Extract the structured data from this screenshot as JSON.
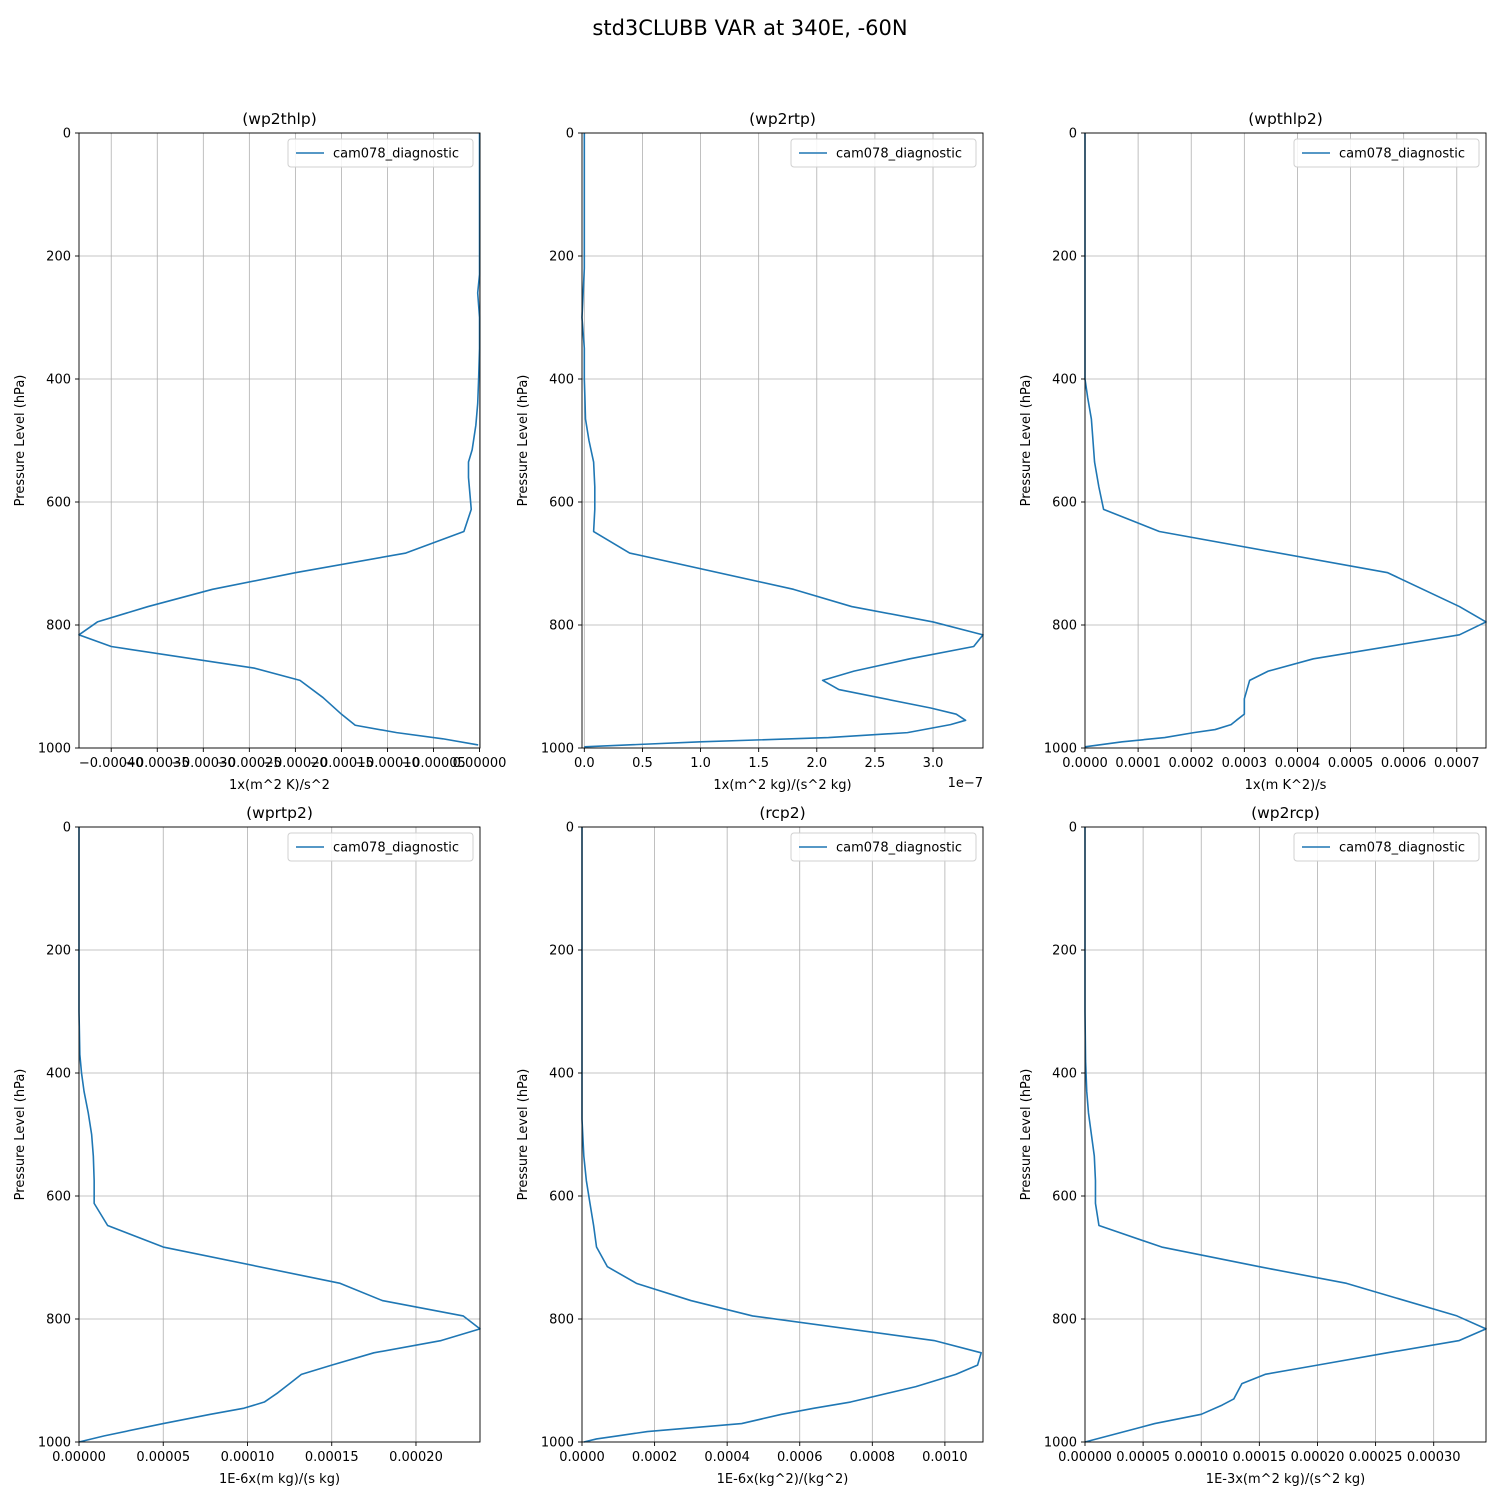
{
  "suptitle": "std3CLUBB VAR at 340E, -60N",
  "chart_data": [
    {
      "type": "line",
      "title": "(wp2thlp)",
      "xlabel": "1x(m^2 K)/s^2",
      "ylabel": "Pressure Level (hPa)",
      "xlim": [
        -0.000435,
        5e-07
      ],
      "ylim": [
        1000,
        0
      ],
      "xticks": [
        -0.0004,
        -0.00035,
        -0.0003,
        -0.00025,
        -0.0002,
        -0.00015,
        -0.0001,
        -5e-05,
        0.0
      ],
      "xticklabels": [
        "−0.00040",
        "−0.00035",
        "−0.00030",
        "−0.00025",
        "−0.00020",
        "−0.00015",
        "−0.00010",
        "−0.00005",
        "0.00000"
      ],
      "yticks": [
        0,
        200,
        400,
        600,
        800,
        1000
      ],
      "yticklabels": [
        "0",
        "200",
        "400",
        "600",
        "800",
        "1000"
      ],
      "grid": true,
      "legend_loc": "upper right",
      "series": [
        {
          "name": "cam078_diagnostic",
          "color": "#1f77b4",
          "x": [
            0.0,
            0.0,
            0.0,
            0.0,
            0.0,
            -2e-06,
            0.0,
            0.0,
            -1e-06,
            -2e-06,
            -4e-06,
            -8e-06,
            -1.2e-05,
            -1.2e-05,
            -9e-06,
            -1.7e-05,
            -8e-05,
            -0.0002,
            -0.00029,
            -0.00036,
            -0.000415,
            -0.000435,
            -0.0004,
            -0.000245,
            -0.000195,
            -0.00017,
            -0.00015,
            -0.000135,
            -9e-05,
            -4e-05,
            -1.5e-06
          ],
          "y": [
            0,
            100,
            150,
            200,
            230,
            260,
            300,
            350,
            400,
            440,
            475,
            515,
            535,
            560,
            612,
            648,
            683,
            715,
            742,
            770,
            795,
            816,
            835,
            870,
            890,
            918,
            945,
            963,
            975,
            985,
            995
          ]
        }
      ]
    },
    {
      "type": "line",
      "title": "(wp2rtp)",
      "xlabel": "1x(m^2 kg)/(s^2 kg)",
      "ylabel": "Pressure Level (hPa)",
      "offset_label": "1e−7",
      "xlim": [
        -2e-09,
        3.43e-07
      ],
      "ylim": [
        1000,
        0
      ],
      "xticks": [
        0.0,
        5e-08,
        1e-07,
        1.5e-07,
        2e-07,
        2.5e-07,
        3e-07
      ],
      "xticklabels": [
        "0.0",
        "0.5",
        "1.0",
        "1.5",
        "2.0",
        "2.5",
        "3.0"
      ],
      "yticks": [
        0,
        200,
        400,
        600,
        800,
        1000
      ],
      "yticklabels": [
        "0",
        "200",
        "400",
        "600",
        "800",
        "1000"
      ],
      "grid": true,
      "legend_loc": "upper right",
      "series": [
        {
          "name": "cam078_diagnostic",
          "color": "#1f77b4",
          "x": [
            0.0,
            0.0,
            0.0,
            -1e-09,
            -2e-09,
            0.0,
            0.0,
            5e-10,
            1e-09,
            4e-09,
            8e-09,
            9e-09,
            9e-09,
            8e-09,
            3.9e-08,
            1.8e-07,
            2.3e-07,
            3e-07,
            3.43e-07,
            3.35e-07,
            2.8e-07,
            2.32e-07,
            2.05e-07,
            2.19e-07,
            2.98e-07,
            3.2e-07,
            3.28e-07,
            3.15e-07,
            2.78e-07,
            2.1e-07,
            1e-07,
            0.0
          ],
          "y": [
            0,
            100,
            220,
            260,
            300,
            350,
            400,
            430,
            465,
            500,
            535,
            575,
            612,
            648,
            683,
            742,
            770,
            795,
            816,
            835,
            855,
            875,
            890,
            905,
            935,
            945,
            955,
            962,
            975,
            983,
            990,
            998
          ]
        }
      ]
    },
    {
      "type": "line",
      "title": "(wpthlp2)",
      "xlabel": "1x(m K^2)/s",
      "ylabel": "Pressure Level (hPa)",
      "xlim": [
        0.0,
        0.000755
      ],
      "ylim": [
        1000,
        0
      ],
      "xticks": [
        0.0,
        0.0001,
        0.0002,
        0.0003,
        0.0004,
        0.0005,
        0.0006,
        0.0007
      ],
      "xticklabels": [
        "0.0000",
        "0.0001",
        "0.0002",
        "0.0003",
        "0.0004",
        "0.0005",
        "0.0006",
        "0.0007"
      ],
      "yticks": [
        0,
        200,
        400,
        600,
        800,
        1000
      ],
      "yticklabels": [
        "0",
        "200",
        "400",
        "600",
        "800",
        "1000"
      ],
      "grid": true,
      "legend_loc": "upper right",
      "series": [
        {
          "name": "cam078_diagnostic",
          "color": "#1f77b4",
          "x": [
            0.0,
            0.0,
            0.0,
            0.0,
            0.0,
            5e-06,
            1.2e-05,
            1.5e-05,
            1.8e-05,
            2.6e-05,
            3.5e-05,
            0.00014,
            0.00057,
            0.000705,
            0.000755,
            0.000705,
            0.00043,
            0.000345,
            0.00031,
            0.000305,
            0.0003,
            0.0003,
            0.000285,
            0.000275,
            0.000245,
            0.000205,
            0.00015,
            7e-05,
            1e-07
          ],
          "y": [
            0,
            150,
            200,
            260,
            400,
            430,
            465,
            500,
            535,
            575,
            612,
            648,
            715,
            770,
            795,
            816,
            855,
            875,
            890,
            905,
            920,
            945,
            955,
            962,
            970,
            975,
            983,
            990,
            998
          ]
        }
      ]
    },
    {
      "type": "line",
      "title": "(wprtp2)",
      "xlabel": "1E-6x(m kg)/(s kg)",
      "ylabel": "Pressure Level (hPa)",
      "xlim": [
        0.0,
        0.000238
      ],
      "ylim": [
        1000,
        0
      ],
      "xticks": [
        0.0,
        5e-05,
        0.0001,
        0.00015,
        0.0002
      ],
      "xticklabels": [
        "0.00000",
        "0.00005",
        "0.00010",
        "0.00015",
        "0.00020"
      ],
      "yticks": [
        0,
        200,
        400,
        600,
        800,
        1000
      ],
      "yticklabels": [
        "0",
        "200",
        "400",
        "600",
        "800",
        "1000"
      ],
      "grid": true,
      "legend_loc": "upper right",
      "series": [
        {
          "name": "cam078_diagnostic",
          "color": "#1f77b4",
          "x": [
            0.0,
            0.0,
            0.0,
            0.0,
            5e-07,
            1.5e-06,
            3e-06,
            5.5e-06,
            7.5e-06,
            8.5e-06,
            9e-06,
            9e-06,
            1.7e-05,
            5e-05,
            0.000155,
            0.00018,
            0.000228,
            0.000238,
            0.000215,
            0.000175,
            0.00015,
            0.000132,
            0.000125,
            0.000118,
            0.00011,
            9.8e-05,
            7.8e-05,
            5e-05,
            1.5e-05,
            0.0
          ],
          "y": [
            0,
            100,
            200,
            300,
            370,
            400,
            430,
            465,
            500,
            535,
            575,
            612,
            648,
            683,
            742,
            770,
            795,
            816,
            835,
            855,
            875,
            890,
            905,
            920,
            935,
            945,
            955,
            970,
            990,
            1000
          ]
        }
      ]
    },
    {
      "type": "line",
      "title": "(rcp2)",
      "xlabel": "1E-6x(kg^2)/(kg^2)",
      "ylabel": "Pressure Level (hPa)",
      "xlim": [
        0.0,
        0.001105
      ],
      "ylim": [
        1000,
        0
      ],
      "xticks": [
        0.0,
        0.0002,
        0.0004,
        0.0006,
        0.0008,
        0.001
      ],
      "xticklabels": [
        "0.0000",
        "0.0002",
        "0.0004",
        "0.0006",
        "0.0008",
        "0.0010"
      ],
      "yticks": [
        0,
        200,
        400,
        600,
        800,
        1000
      ],
      "yticklabels": [
        "0",
        "200",
        "400",
        "600",
        "800",
        "1000"
      ],
      "grid": true,
      "legend_loc": "upper right",
      "series": [
        {
          "name": "cam078_diagnostic",
          "color": "#1f77b4",
          "x": [
            0.0,
            0.0,
            5e-06,
            1.2e-05,
            2.2e-05,
            3.2e-05,
            4e-05,
            7e-05,
            0.00015,
            0.0003,
            0.00047,
            0.00097,
            0.0011,
            0.00109,
            0.00103,
            0.00092,
            0.00074,
            0.00064,
            0.00055,
            0.00044,
            0.00018,
            0.0001,
            4e-05,
            5e-06
          ],
          "y": [
            0,
            475,
            535,
            575,
            612,
            648,
            683,
            715,
            742,
            770,
            795,
            835,
            855,
            875,
            890,
            910,
            935,
            945,
            955,
            970,
            983,
            990,
            995,
            1000
          ]
        }
      ]
    },
    {
      "type": "line",
      "title": "(wp2rcp)",
      "xlabel": "1E-3x(m^2 kg)/(s^2 kg)",
      "ylabel": "Pressure Level (hPa)",
      "xlim": [
        0.0,
        0.000345
      ],
      "ylim": [
        1000,
        0
      ],
      "xticks": [
        0.0,
        5e-05,
        0.0001,
        0.00015,
        0.0002,
        0.00025,
        0.0003
      ],
      "xticklabels": [
        "0.00000",
        "0.00005",
        "0.00010",
        "0.00015",
        "0.00020",
        "0.00025",
        "0.00030"
      ],
      "yticks": [
        0,
        200,
        400,
        600,
        800,
        1000
      ],
      "yticklabels": [
        "0",
        "200",
        "400",
        "600",
        "800",
        "1000"
      ],
      "grid": true,
      "legend_loc": "upper right",
      "series": [
        {
          "name": "cam078_diagnostic",
          "color": "#1f77b4",
          "x": [
            0.0,
            0.0,
            0.0,
            0.0,
            5e-07,
            1.5e-06,
            3e-06,
            5.5e-06,
            8e-06,
            9e-06,
            9e-06,
            1.2e-05,
            6.6e-05,
            0.00015,
            0.000225,
            0.00032,
            0.000345,
            0.000322,
            0.00026,
            0.0002,
            0.000155,
            0.000135,
            0.000128,
            0.000118,
            0.0001,
            6e-05,
            2e-05,
            0.0
          ],
          "y": [
            0,
            100,
            200,
            300,
            380,
            430,
            465,
            500,
            535,
            575,
            612,
            648,
            683,
            715,
            742,
            795,
            816,
            835,
            855,
            875,
            890,
            905,
            930,
            940,
            955,
            970,
            990,
            1000
          ]
        }
      ]
    }
  ]
}
